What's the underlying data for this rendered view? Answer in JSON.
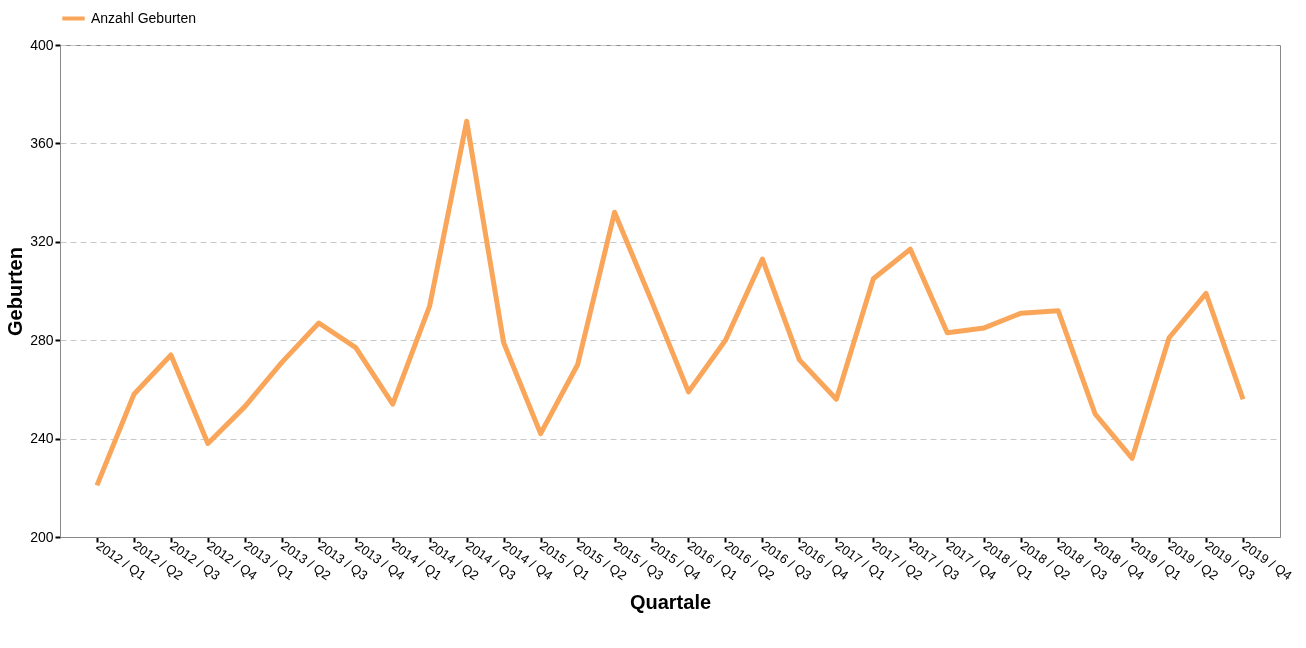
{
  "chart_data": {
    "type": "line",
    "xlabel": "Quartale",
    "ylabel": "Geburten",
    "categories": [
      "2012 / Q1",
      "2012 / Q2",
      "2012 / Q3",
      "2012 / Q4",
      "2013 / Q1",
      "2013 / Q2",
      "2013 / Q3",
      "2013 / Q4",
      "2014 / Q1",
      "2014 / Q2",
      "2014 / Q3",
      "2014 / Q4",
      "2015 / Q1",
      "2015 / Q2",
      "2015 / Q3",
      "2015 / Q4",
      "2016 / Q1",
      "2016 / Q2",
      "2016 / Q3",
      "2016 / Q4",
      "2017 / Q1",
      "2017 / Q2",
      "2017 / Q3",
      "2017 / Q4",
      "2018 / Q1",
      "2018 / Q2",
      "2018 / Q3",
      "2018 / Q4",
      "2019 / Q1",
      "2019 / Q2",
      "2019 / Q3",
      "2019 / Q4"
    ],
    "series": [
      {
        "name": "Anzahl Geburten",
        "color": "#f9a65a",
        "values": [
          221,
          258,
          274,
          238,
          253,
          271,
          287,
          277,
          254,
          294,
          369,
          279,
          242,
          270,
          332,
          296,
          259,
          280,
          313,
          272,
          256,
          305,
          317,
          283,
          285,
          291,
          292,
          250,
          232,
          281,
          299,
          256
        ]
      }
    ],
    "ylim": [
      200,
      400
    ],
    "yticks": [
      200,
      240,
      280,
      320,
      360,
      400
    ],
    "grid": "y",
    "legend": "top",
    "marker": "none",
    "line_style": "solid"
  }
}
